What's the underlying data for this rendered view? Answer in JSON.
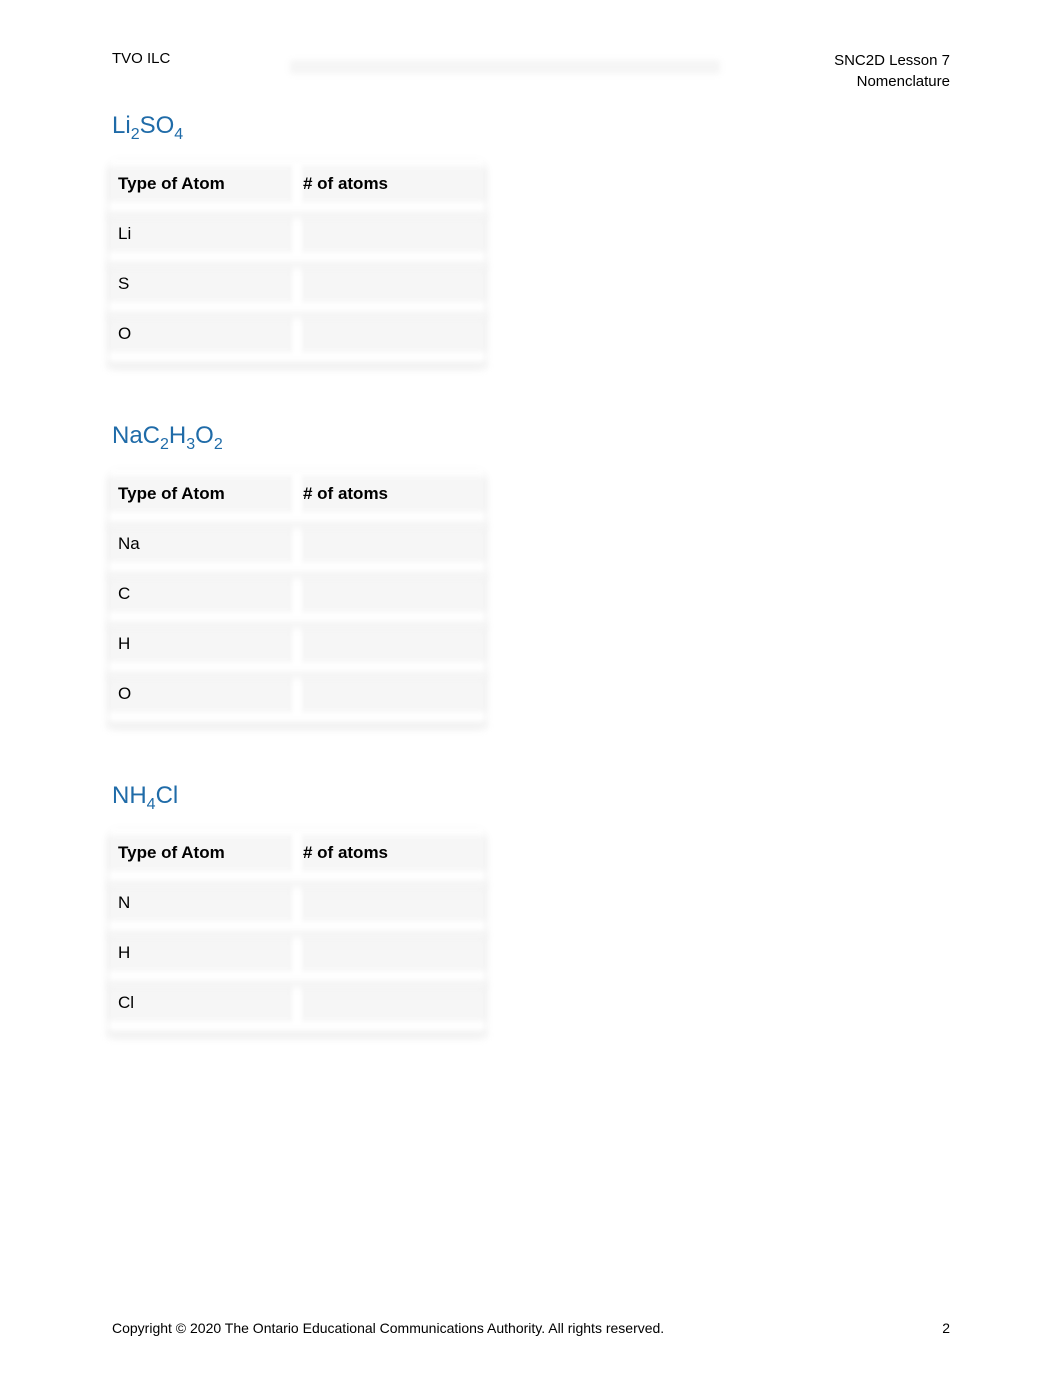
{
  "header": {
    "left": "TVO ILC",
    "right_line1": "SNC2D Lesson 7",
    "right_line2": "Nomenclature"
  },
  "colors": {
    "heading": "#1f6ba8",
    "text": "#000000",
    "background": "#ffffff",
    "blur_fill": "#f5f5f5"
  },
  "column_headers": {
    "type": "Type of Atom",
    "count": "# of atoms"
  },
  "sections": [
    {
      "formula_parts": [
        {
          "text": "Li",
          "sub": false
        },
        {
          "text": "2",
          "sub": true
        },
        {
          "text": "SO",
          "sub": false
        },
        {
          "text": "4",
          "sub": true
        }
      ],
      "rows": [
        {
          "atom": "Li",
          "count": ""
        },
        {
          "atom": "S",
          "count": ""
        },
        {
          "atom": "O",
          "count": ""
        }
      ]
    },
    {
      "formula_parts": [
        {
          "text": "NaC",
          "sub": false
        },
        {
          "text": "2",
          "sub": true
        },
        {
          "text": "H",
          "sub": false
        },
        {
          "text": "3",
          "sub": true
        },
        {
          "text": "O",
          "sub": false
        },
        {
          "text": "2",
          "sub": true
        }
      ],
      "rows": [
        {
          "atom": "Na",
          "count": ""
        },
        {
          "atom": "C",
          "count": ""
        },
        {
          "atom": "H",
          "count": ""
        },
        {
          "atom": "O",
          "count": ""
        }
      ]
    },
    {
      "formula_parts": [
        {
          "text": "NH",
          "sub": false
        },
        {
          "text": "4",
          "sub": true
        },
        {
          "text": "Cl",
          "sub": false
        }
      ],
      "rows": [
        {
          "atom": "N",
          "count": ""
        },
        {
          "atom": "H",
          "count": ""
        },
        {
          "atom": "Cl",
          "count": ""
        }
      ]
    }
  ],
  "footer": {
    "copyright": "Copyright © 2020 The Ontario Educational Communications Authority. All rights reserved.",
    "page": "2"
  }
}
